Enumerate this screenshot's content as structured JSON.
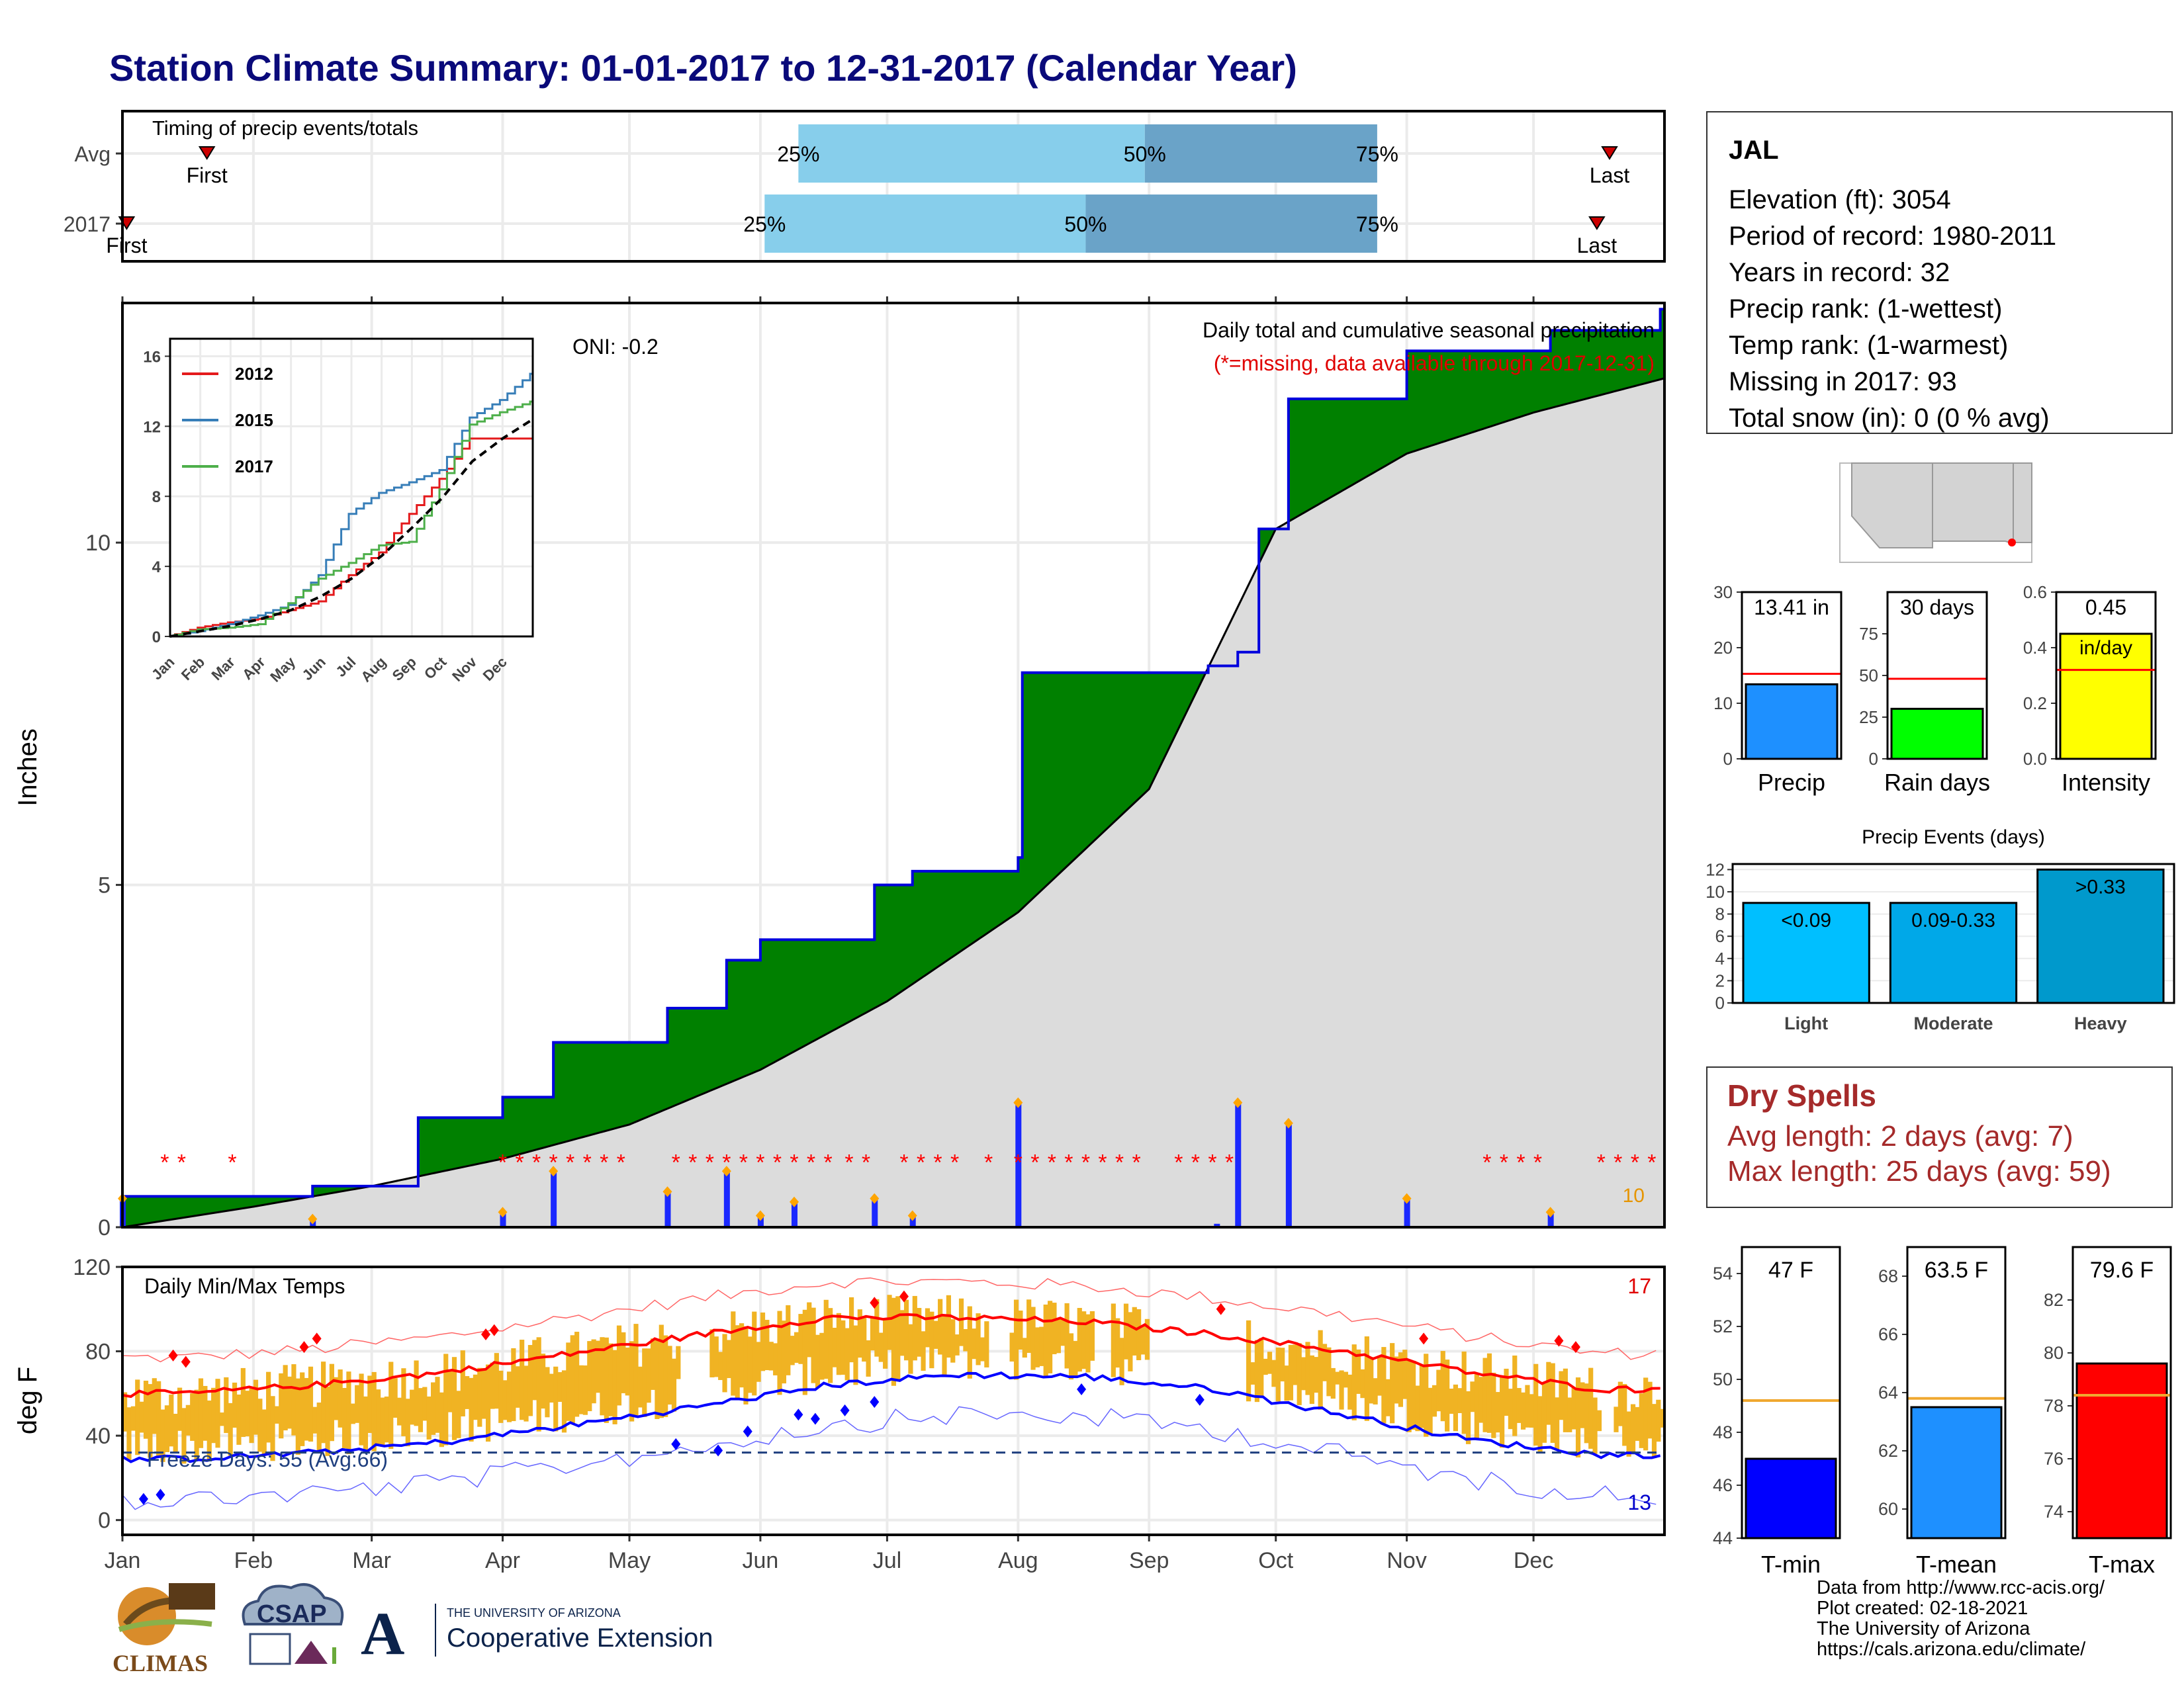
{
  "title": "Station Climate Summary: 01-01-2017 to 12-31-2017 (Calendar Year)",
  "timing": {
    "title": "Timing of precip events/totals",
    "rows": [
      {
        "label": "Avg",
        "first_label": "First",
        "last_label": "Last",
        "first_doy": 20,
        "last_doy": 352,
        "p25_doy": 160,
        "p50_doy": 242,
        "p75_doy": 297,
        "p25_label": "25%",
        "p50_label": "50%",
        "p75_label": "75%"
      },
      {
        "label": "2017",
        "first_label": "First",
        "last_label": "Last",
        "first_doy": 1,
        "last_doy": 349,
        "p25_doy": 152,
        "p50_doy": 228,
        "p75_doy": 297,
        "p25_label": "25%",
        "p50_label": "50%",
        "p75_label": "75%"
      }
    ],
    "colors": {
      "early": "#87ceeb",
      "late": "#6aa3c8",
      "marker": "#cc0000"
    }
  },
  "precip_panel": {
    "title": "Daily total and cumulative seasonal precipitation",
    "missing_note": "(*=missing, data available through 2017-12-31)",
    "oni": "ONI: -0.2",
    "ylabel": "Inches",
    "yticks": [
      "0",
      "5",
      "10"
    ],
    "missing_count": "10",
    "colors": {
      "above": "#008000",
      "below": "#7f4f00",
      "normal": "#dcdcdc",
      "cum_line": "#0000dd",
      "bars": "#1a28ff",
      "missing": "#ff0000"
    }
  },
  "inset": {
    "yticks": [
      "0",
      "4",
      "8",
      "12",
      "16"
    ],
    "months": [
      "Jan",
      "Feb",
      "Mar",
      "Apr",
      "May",
      "Jun",
      "Jul",
      "Aug",
      "Sep",
      "Oct",
      "Nov",
      "Dec"
    ],
    "legend": [
      {
        "name": "2012",
        "color": "#e41a1c"
      },
      {
        "name": "2015",
        "color": "#377eb8"
      },
      {
        "name": "2017",
        "color": "#4daf4a"
      }
    ]
  },
  "temp_panel": {
    "title": "Daily Min/Max Temps",
    "ylabel": "deg F",
    "yticks": [
      "0",
      "40",
      "80",
      "120"
    ],
    "freeze_label": "Freeze Days: 55 (Avg:66)",
    "hot_count": "17",
    "cold_count": "13",
    "months": [
      "Jan",
      "Feb",
      "Mar",
      "Apr",
      "May",
      "Jun",
      "Jul",
      "Aug",
      "Sep",
      "Oct",
      "Nov",
      "Dec"
    ],
    "colors": {
      "bars": "#f0b323",
      "max": "#ff0000",
      "min": "#0000ff",
      "freeze": "#1f3f7f"
    }
  },
  "station": {
    "name": "JAL",
    "lines": [
      "Elevation (ft): 3054",
      "Period of record: 1980-2011",
      "Years in record: 32",
      "Precip rank:  (1-wettest)",
      "Temp rank:  (1-warmest)",
      "Missing in 2017: 93",
      "Total snow (in): 0 (0 % avg)"
    ]
  },
  "summary_bars": [
    {
      "label": "Precip",
      "value_label": "13.41 in",
      "value": 13.41,
      "avg": 15.3,
      "ymax": 30,
      "yticks": [
        "0",
        "10",
        "20",
        "30"
      ],
      "color": "#1e90ff"
    },
    {
      "label": "Rain days",
      "value_label": "30 days",
      "value": 30,
      "avg": 48,
      "ymax": 100,
      "yticks": [
        "0",
        "25",
        "50",
        "75"
      ],
      "color": "#00ff00"
    },
    {
      "label": "Intensity",
      "value_label": "0.45",
      "value_label2": "in/day",
      "value": 0.45,
      "avg": 0.32,
      "ymax": 0.6,
      "yticks": [
        "0.0",
        "0.2",
        "0.4",
        "0.6"
      ],
      "color": "#ffff00"
    }
  ],
  "events": {
    "title": "Precip Events (days)",
    "yticks": [
      "0",
      "2",
      "4",
      "6",
      "8",
      "10",
      "12"
    ],
    "categories": [
      "Light",
      "Moderate",
      "Heavy"
    ],
    "bar_labels": [
      "<0.09",
      "0.09-0.33",
      ">0.33"
    ],
    "values": [
      9,
      9,
      12
    ],
    "colors": [
      "#00bfff",
      "#00a8e8",
      "#0099cc"
    ]
  },
  "dry_spells": {
    "title": "Dry Spells",
    "avg": "Avg length: 2 days (avg: 7)",
    "max": "Max length: 25 days (avg: 59)"
  },
  "temp_bars": [
    {
      "label": "T-min",
      "value_label": "47 F",
      "value": 47,
      "avg": 49.2,
      "ylim": [
        44,
        55
      ],
      "yticks": [
        "44",
        "46",
        "48",
        "50",
        "52",
        "54"
      ],
      "color": "#0000ff"
    },
    {
      "label": "T-mean",
      "value_label": "63.5 F",
      "value": 63.5,
      "avg": 63.8,
      "ylim": [
        59,
        69
      ],
      "yticks": [
        "60",
        "62",
        "64",
        "66",
        "68"
      ],
      "color": "#1e90ff"
    },
    {
      "label": "T-max",
      "value_label": "79.6 F",
      "value": 79.6,
      "avg": 78.4,
      "ylim": [
        73,
        84
      ],
      "yticks": [
        "74",
        "76",
        "78",
        "80",
        "82"
      ],
      "color": "#ff0000"
    }
  ],
  "credits": [
    "Data from http://www.rcc-acis.org/",
    "Plot created: 02-18-2021",
    "The University of Arizona",
    "https://cals.arizona.edu/climate/"
  ],
  "logos": {
    "climas": "CLIMAS",
    "csap": "CSAP",
    "ua_small": "THE UNIVERSITY OF ARIZONA",
    "ua_ext": "Cooperative Extension",
    "ua_mark": "A"
  },
  "chart_data": [
    {
      "type": "area",
      "title": "Daily total and cumulative seasonal precipitation",
      "xlabel": "",
      "ylabel": "Inches",
      "ylim": [
        0,
        13.5
      ],
      "series": [
        {
          "name": "",
          "x": [
            "Jan 1",
            "Jan 14",
            "Feb 15",
            "Mar 12",
            "Apr 1",
            "Apr 13",
            "May 10",
            "May 24",
            "Jun 1",
            "Jun 28",
            "Jul 7",
            "Aug 1",
            "Aug 2",
            "Sep 15",
            "Sep 22",
            "Sep 27",
            "Oct 4",
            "Nov 1",
            "Dec 5",
            "Dec 31"
          ],
          "y": [
            0.45,
            0.45,
            0.6,
            1.6,
            1.9,
            2.7,
            3.2,
            3.9,
            4.2,
            5.0,
            5.2,
            5.4,
            8.1,
            8.2,
            8.4,
            10.2,
            12.1,
            12.8,
            13.1,
            13.41
          ]
        }
      ],
      "daily_precip": [
        {
          "x": "Jan 1",
          "y": 0.4
        },
        {
          "x": "Feb 15",
          "y": 0.1
        },
        {
          "x": "Apr 1",
          "y": 0.2
        },
        {
          "x": "Apr 13",
          "y": 0.8
        },
        {
          "x": "May 10",
          "y": 0.5
        },
        {
          "x": "May 24",
          "y": 0.8
        },
        {
          "x": "Jun 1",
          "y": 0.15
        },
        {
          "x": "Jun 9",
          "y": 0.35
        },
        {
          "x": "Jun 28",
          "y": 0.4
        },
        {
          "x": "Jul 7",
          "y": 0.15
        },
        {
          "x": "Aug 1",
          "y": 1.8
        },
        {
          "x": "Sep 17",
          "y": 0.05
        },
        {
          "x": "Sep 22",
          "y": 1.8
        },
        {
          "x": "Oct 4",
          "y": 1.5
        },
        {
          "x": "Nov 1",
          "y": 0.4
        },
        {
          "x": "Dec 5",
          "y": 0.2
        }
      ]
    },
    {
      "type": "line",
      "title": "",
      "xlabel": "",
      "ylabel": "",
      "x": [
        "Jan",
        "Feb",
        "Mar",
        "Apr",
        "May",
        "Jun",
        "Jul",
        "Aug",
        "Sep",
        "Oct",
        "Nov",
        "Dec"
      ],
      "ylim": [
        0,
        17
      ],
      "series": [
        {
          "name": "2012",
          "values": [
            0.5,
            0.8,
            1.0,
            1.5,
            2.0,
            3.5,
            4.8,
            7.0,
            9.0,
            11.3,
            11.3,
            11.3
          ]
        },
        {
          "name": "2015",
          "values": [
            0.3,
            0.7,
            1.2,
            1.8,
            3.5,
            7.0,
            8.2,
            8.8,
            9.5,
            12.5,
            13.5,
            15.0
          ]
        },
        {
          "name": "2017",
          "values": [
            0.4,
            0.5,
            0.7,
            1.9,
            3.3,
            4.2,
            5.2,
            5.4,
            8.4,
            12.1,
            12.8,
            13.41
          ]
        },
        {
          "name": "",
          "values": [
            0.3,
            0.6,
            1.0,
            1.5,
            2.3,
            3.3,
            4.6,
            6.2,
            7.9,
            10.0,
            11.3,
            12.4
          ]
        }
      ]
    },
    {
      "type": "line",
      "title": "Daily Min/Max Temps",
      "xlabel": "",
      "ylabel": "deg F",
      "x": [
        "Jan",
        "Feb",
        "Mar",
        "Apr",
        "May",
        "Jun",
        "Jul",
        "Aug",
        "Sep",
        "Oct",
        "Nov",
        "Dec"
      ],
      "ylim": [
        -7,
        120
      ],
      "series": [
        {
          "name": "",
          "values": [
            60,
            64,
            70,
            79,
            88,
            96,
            96,
            94,
            88,
            80,
            70,
            62
          ]
        },
        {
          "name": "",
          "values": [
            29,
            32,
            37,
            45,
            54,
            64,
            69,
            68,
            62,
            50,
            38,
            31
          ]
        }
      ],
      "freeze_line": 32
    },
    {
      "type": "bar",
      "title": "Precip Events (days)",
      "categories": [
        "Light",
        "Moderate",
        "Heavy"
      ],
      "values": [
        9,
        9,
        12
      ],
      "ylim": [
        0,
        12.5
      ]
    }
  ]
}
